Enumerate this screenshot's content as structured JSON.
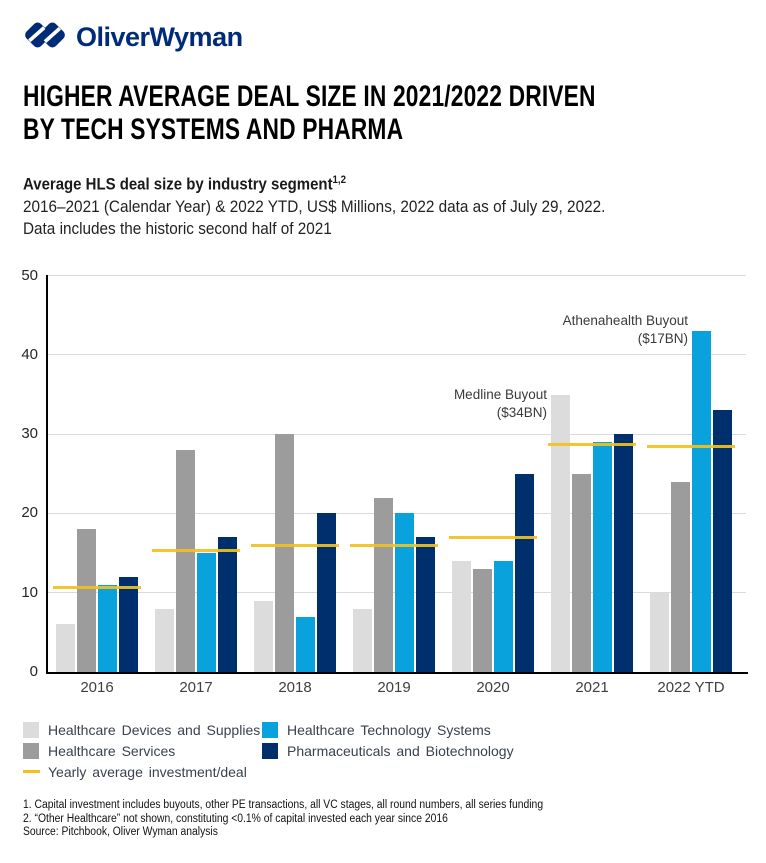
{
  "brand": {
    "logo_text": "OliverWyman",
    "logo_color": "#002C77"
  },
  "title": {
    "line1": "HIGHER AVERAGE DEAL SIZE IN 2021/2022 DRIVEN",
    "line2": "BY TECH SYSTEMS AND PHARMA"
  },
  "subtitle": {
    "heading": "Average HLS deal size by industry segment",
    "heading_superscript": "1,2",
    "line1": "2016–2021 (Calendar Year) & 2022 YTD, US$ Millions, 2022 data as of July 29, 2022.",
    "line2": "Data includes the historic second half of 2021"
  },
  "chart_data": {
    "type": "bar",
    "title": "Average HLS deal size by industry segment",
    "categories": [
      "2016",
      "2017",
      "2018",
      "2019",
      "2020",
      "2021",
      "2022 YTD"
    ],
    "series": [
      {
        "name": "Healthcare Devices and Supplies",
        "color": "#DCDCDC",
        "values": [
          6,
          8,
          9,
          8,
          14,
          35,
          10
        ]
      },
      {
        "name": "Healthcare Services",
        "color": "#9C9C9C",
        "values": [
          18,
          28,
          30,
          22,
          13,
          25,
          24
        ]
      },
      {
        "name": "Healthcare Technology Systems",
        "color": "#0AA2DC",
        "values": [
          11,
          15,
          7,
          20,
          14,
          29,
          43
        ]
      },
      {
        "name": "Pharmaceuticals and Biotechnology",
        "color": "#002F6E",
        "values": [
          12,
          17,
          20,
          17,
          25,
          30,
          33
        ]
      }
    ],
    "average_line": {
      "name": "Yearly average investment/deal",
      "color": "#F2C11E",
      "values": [
        10.7,
        15.3,
        16,
        16,
        17,
        28.7,
        28.4
      ]
    },
    "ylim": [
      0,
      50
    ],
    "yticks": [
      0,
      10,
      20,
      30,
      40,
      50
    ],
    "grid": true,
    "legend_position": "bottom",
    "annotations": [
      {
        "line1": "Medline Buyout",
        "line2": "($34BN)",
        "anchor_category": "2021",
        "anchor_series": "Healthcare Devices and Supplies"
      },
      {
        "line1": "Athenahealth Buyout",
        "line2": "($17BN)",
        "anchor_category": "2022 YTD",
        "anchor_series": "Healthcare Technology Systems"
      }
    ]
  },
  "legend": {
    "items": [
      {
        "label": "Healthcare Devices and Supplies",
        "color": "#DCDCDC",
        "type": "square"
      },
      {
        "label": "Healthcare Services",
        "color": "#9C9C9C",
        "type": "square"
      },
      {
        "label": "Yearly average investment/deal",
        "color": "#F2C11E",
        "type": "line"
      },
      {
        "label": "Healthcare Technology Systems",
        "color": "#0AA2DC",
        "type": "square"
      },
      {
        "label": "Pharmaceuticals and Biotechnology",
        "color": "#002F6E",
        "type": "square"
      }
    ]
  },
  "footnotes": {
    "lines": [
      "1. Capital investment includes buyouts, other PE transactions, all VC stages, all round numbers, all series funding",
      "2. “Other Healthcare” not shown, constituting <0.1% of capital invested each year since 2016",
      "Source: Pitchbook, Oliver Wyman analysis"
    ]
  }
}
